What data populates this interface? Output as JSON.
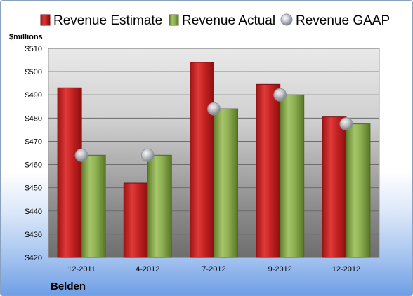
{
  "chart_data": {
    "type": "bar",
    "title": "",
    "unit_label": "$millions",
    "xlabel": "",
    "ylabel": "",
    "company": "Belden",
    "categories": [
      "12-2011",
      "4-2012",
      "7-2012",
      "9-2012",
      "12-2012"
    ],
    "series": [
      {
        "name": "Revenue Estimate",
        "type": "bar",
        "color": "#d32f2f",
        "values": [
          493,
          452,
          504,
          494.5,
          480.5
        ]
      },
      {
        "name": "Revenue Actual",
        "type": "bar",
        "color": "#8fb356",
        "values": [
          464,
          464,
          484,
          490,
          477.5
        ]
      },
      {
        "name": "Revenue GAAP",
        "type": "marker",
        "color": "#b9bec6",
        "values": [
          464,
          464,
          484,
          490,
          477.5
        ]
      }
    ],
    "ylim": [
      420,
      510
    ],
    "yticks": [
      420,
      430,
      440,
      450,
      460,
      470,
      480,
      490,
      500,
      510
    ],
    "ytick_labels": [
      "$420",
      "$430",
      "$440",
      "$450",
      "$460",
      "$470",
      "$480",
      "$490",
      "$500",
      "$510"
    ],
    "grid": true,
    "legend_position": "top"
  }
}
